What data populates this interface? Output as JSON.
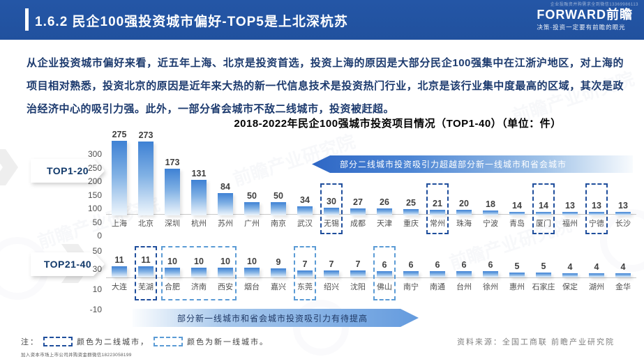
{
  "header": {
    "title": "1.6.2 民企100强投资城市偏好-TOP5是上北深杭苏",
    "tiny_text": "企业投融资并购需求全到微信13369986113",
    "logo_text": "FORWARD前瞻",
    "logo_slogan": "决策·投资一定要有前瞻的眼光"
  },
  "paragraph": "从企业投资城市偏好来看，近五年上海、北京是投资首选，投资上海的原因是大部分民企100强集中在江浙沪地区，对上海的项目相对熟悉，投资北京的原因是近年来大热的新一代信息技术是投资热门行业，北京是该行业集中度最高的区域，其次是政治经济中心的吸引力强。此外，一部分省会城市不敌二线城市，投资被赶超。",
  "chart_title": "2018-2022年民企100强城市投资项目情况（TOP1-40）（单位：件）",
  "colors": {
    "header_blue": "#21519E",
    "bar_top": "#3E81D4",
    "second_tier_dash": "#1F4E9C",
    "new_first_tier_dash": "#5B9BD5",
    "banner_top_blue": "#2E67C5",
    "banner_bottom_blue": "#649BDE"
  },
  "chart_data": [
    {
      "type": "bar",
      "row_label": "TOP1-20",
      "categories": [
        "上海",
        "北京",
        "深圳",
        "杭州",
        "苏州",
        "广州",
        "南京",
        "武汉",
        "无锡",
        "成都",
        "天津",
        "重庆",
        "常州",
        "珠海",
        "宁波",
        "青岛",
        "厦门",
        "福州",
        "宁德",
        "长沙"
      ],
      "values": [
        275,
        273,
        173,
        131,
        84,
        50,
        50,
        34,
        30,
        27,
        26,
        25,
        21,
        20,
        18,
        14,
        14,
        13,
        13,
        13
      ],
      "yticks": [
        300,
        250,
        200,
        150,
        100,
        50,
        0
      ],
      "extra_tick_below": "50",
      "ylim": [
        -50,
        300
      ],
      "grid": false,
      "highlights": [
        {
          "start": 8,
          "span": 1,
          "tier": "second"
        },
        {
          "start": 12,
          "span": 1,
          "tier": "second"
        },
        {
          "start": 16,
          "span": 1,
          "tier": "second"
        },
        {
          "start": 18,
          "span": 1,
          "tier": "second"
        }
      ]
    },
    {
      "type": "bar",
      "row_label": "TOP21-40",
      "categories": [
        "大连",
        "芜湖",
        "合肥",
        "济南",
        "西安",
        "烟台",
        "嘉兴",
        "东莞",
        "绍兴",
        "沈阳",
        "佛山",
        "南宁",
        "南通",
        "台州",
        "徐州",
        "惠州",
        "石家庄",
        "保定",
        "湖州",
        "金华"
      ],
      "values": [
        11,
        11,
        10,
        10,
        10,
        10,
        9,
        7,
        7,
        7,
        6,
        6,
        6,
        6,
        6,
        5,
        5,
        4,
        4,
        4
      ],
      "yticks": [
        30,
        10,
        -10
      ],
      "ylim": [
        -10,
        30
      ],
      "grid": false,
      "highlights": [
        {
          "start": 1,
          "span": 1,
          "tier": "second"
        },
        {
          "start": 2,
          "span": 3,
          "tier": "new_first"
        },
        {
          "start": 7,
          "span": 1,
          "tier": "new_first"
        },
        {
          "start": 10,
          "span": 1,
          "tier": "new_first"
        }
      ]
    }
  ],
  "banners": {
    "top": "部分二线城市投资吸引力超越部分新一线城市和省会城市",
    "bottom": "部分新一线城市和省会城市投资吸引力有待提高"
  },
  "note": {
    "prefix": "注：",
    "second_tier_label": "颜色为二线城市，",
    "new_first_label": "颜色为新一线城市。"
  },
  "source": "资料来源：全国工商联  前瞻产业研究院",
  "footer_tiny": "加入资本市场上市公司并购资金群微信18223058199",
  "watermark": "前瞻产业研究院"
}
